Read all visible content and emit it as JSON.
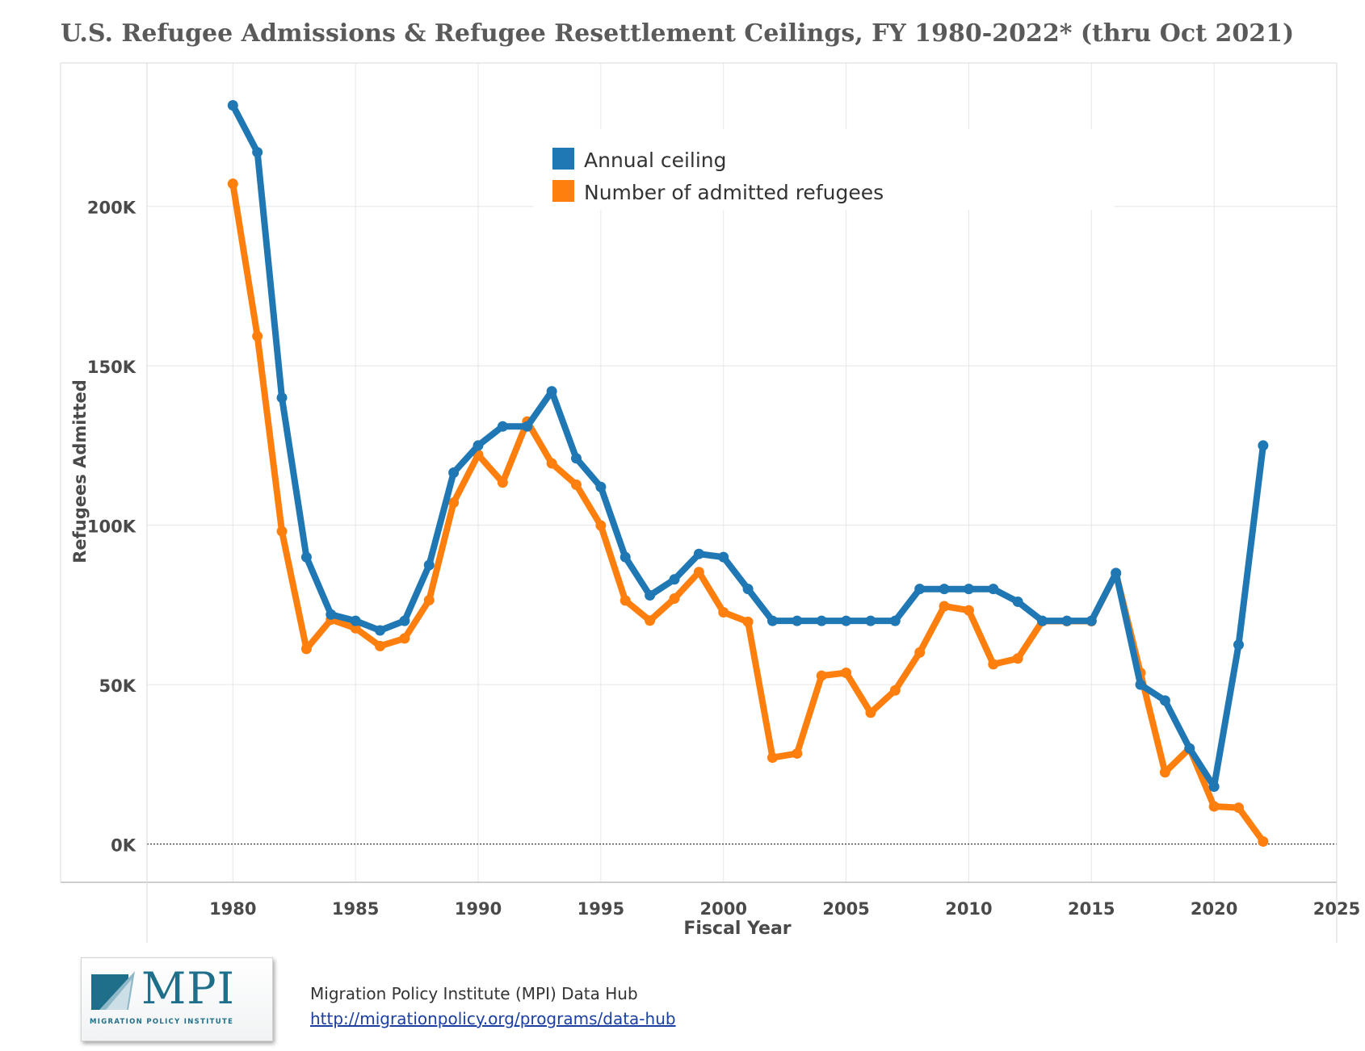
{
  "title": "U.S. Refugee Admissions & Refugee Resettlement Ceilings, FY 1980-2022* (thru Oct 2021)",
  "footer": {
    "logo_text": "MPI",
    "logo_tagline": "MIGRATION POLICY INSTITUTE",
    "source_name": "Migration Policy Institute (MPI) Data Hub",
    "source_url": "http://migrationpolicy.org/programs/data-hub"
  },
  "colors": {
    "ceiling": "#1f77b4",
    "admitted": "#ff7f0e",
    "grid": "#e6e6e6",
    "axis_text": "#4a4a4a"
  },
  "chart_data": {
    "type": "line",
    "title": "U.S. Refugee Admissions & Refugee Resettlement Ceilings, FY 1980-2022* (thru Oct 2021)",
    "xlabel": "Fiscal Year",
    "ylabel": "Refugees Admitted",
    "xlim": [
      1976.5,
      2025
    ],
    "ylim": [
      -12000,
      245000
    ],
    "x_ticks": [
      1980,
      1985,
      1990,
      1995,
      2000,
      2005,
      2010,
      2015,
      2020,
      2025
    ],
    "x_tick_labels": [
      "1980",
      "1985",
      "1990",
      "1995",
      "2000",
      "2005",
      "2010",
      "2015",
      "2020",
      "2025"
    ],
    "y_ticks": [
      0,
      50000,
      100000,
      150000,
      200000
    ],
    "y_tick_labels": [
      "0K",
      "50K",
      "100K",
      "150K",
      "200K"
    ],
    "grid": true,
    "legend_position": "top-center",
    "x": [
      1980,
      1981,
      1982,
      1983,
      1984,
      1985,
      1986,
      1987,
      1988,
      1989,
      1990,
      1991,
      1992,
      1993,
      1994,
      1995,
      1996,
      1997,
      1998,
      1999,
      2000,
      2001,
      2002,
      2003,
      2004,
      2005,
      2006,
      2007,
      2008,
      2009,
      2010,
      2011,
      2012,
      2013,
      2014,
      2015,
      2016,
      2017,
      2018,
      2019,
      2020,
      2021,
      2022
    ],
    "series": [
      {
        "name": "Annual ceiling",
        "key": "ceiling",
        "values": [
          231700,
          217000,
          140000,
          90000,
          72000,
          70000,
          67000,
          70000,
          87500,
          116500,
          125000,
          131000,
          131000,
          142000,
          121000,
          112000,
          90000,
          78000,
          83000,
          91000,
          90000,
          80000,
          70000,
          70000,
          70000,
          70000,
          70000,
          70000,
          80000,
          80000,
          80000,
          80000,
          76000,
          70000,
          70000,
          70000,
          85000,
          50000,
          45000,
          30000,
          18000,
          62500,
          125000
        ]
      },
      {
        "name": "Number of admitted refugees",
        "key": "admitted",
        "values": [
          207100,
          159300,
          98100,
          61200,
          70400,
          67700,
          62100,
          64500,
          76500,
          107100,
          122100,
          113400,
          132500,
          119400,
          112700,
          99900,
          76400,
          70100,
          77000,
          85300,
          72700,
          69700,
          27100,
          28400,
          52800,
          53700,
          41200,
          48200,
          60100,
          74600,
          73300,
          56400,
          58200,
          69900,
          69900,
          69900,
          84900,
          53700,
          22500,
          30000,
          11800,
          11400,
          800
        ]
      }
    ]
  }
}
